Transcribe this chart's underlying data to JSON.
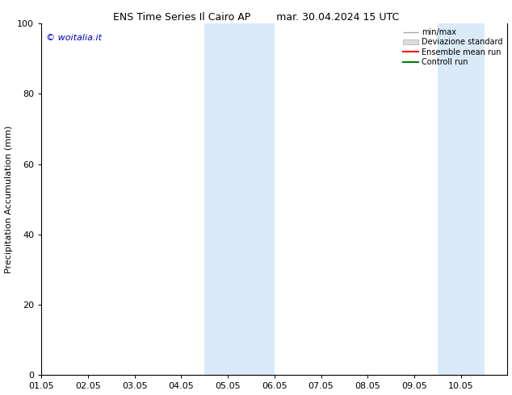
{
  "title_left": "ENS Time Series Il Cairo AP",
  "title_right": "mar. 30.04.2024 15 UTC",
  "ylabel": "Precipitation Accumulation (mm)",
  "ylim": [
    0,
    100
  ],
  "yticks": [
    0,
    20,
    40,
    60,
    80,
    100
  ],
  "xtick_labels": [
    "01.05",
    "02.05",
    "03.05",
    "04.05",
    "05.05",
    "06.05",
    "07.05",
    "08.05",
    "09.05",
    "10.05"
  ],
  "n_xticks": 10,
  "xlim": [
    0,
    10
  ],
  "shaded_bands": [
    {
      "xmin": 3.5,
      "xmax": 4.5,
      "color": "#daeaf8"
    },
    {
      "xmin": 4.5,
      "xmax": 5.0,
      "color": "#daeaf8"
    },
    {
      "xmin": 8.5,
      "xmax": 9.0,
      "color": "#daeaf8"
    },
    {
      "xmin": 9.0,
      "xmax": 9.5,
      "color": "#daeaf8"
    }
  ],
  "shaded_bands2": [
    {
      "xmin": 3.5,
      "xmax": 5.0,
      "color": "#daeaf8"
    },
    {
      "xmin": 8.5,
      "xmax": 9.5,
      "color": "#daeaf8"
    }
  ],
  "legend_labels": [
    "min/max",
    "Deviazione standard",
    "Ensemble mean run",
    "Controll run"
  ],
  "legend_colors_line": [
    "#aaaaaa",
    "#cccccc",
    "#ff0000",
    "#008000"
  ],
  "watermark_text": "© woitalia.it",
  "watermark_color": "#0000bb",
  "bg_color": "#ffffff",
  "font_size": 8,
  "title_font_size": 9
}
